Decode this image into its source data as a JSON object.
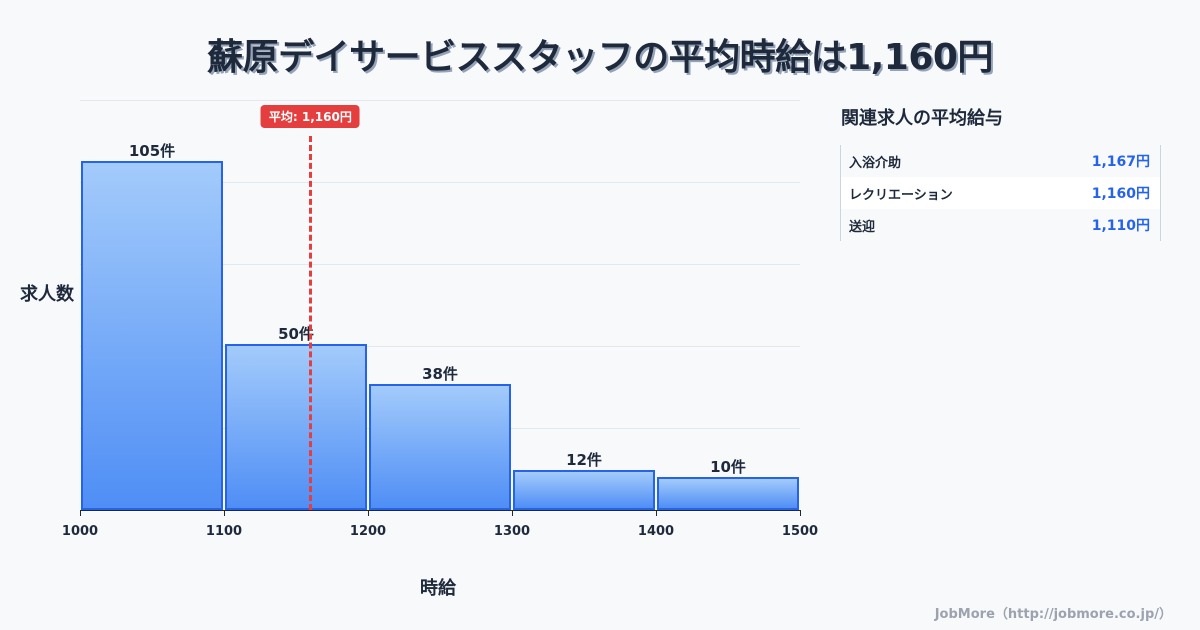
{
  "header": {
    "title": "蘇原デイサービススタッフの平均時給は1,160円"
  },
  "chart": {
    "ylabel": "求人数",
    "xlabel": "時給",
    "mean_label": "平均: 1,160円",
    "x_ticks": [
      "1000",
      "1100",
      "1200",
      "1300",
      "1400",
      "1500"
    ],
    "bar_labels": [
      "105件",
      "50件",
      "38件",
      "12件",
      "10件"
    ]
  },
  "chart_data": {
    "type": "bar",
    "title": "蘇原デイサービススタッフの平均時給は1,160円",
    "xlabel": "時給",
    "ylabel": "求人数",
    "categories": [
      "1000-1100",
      "1100-1200",
      "1200-1300",
      "1300-1400",
      "1400-1500"
    ],
    "bin_edges": [
      1000,
      1100,
      1200,
      1300,
      1400,
      1500
    ],
    "values": [
      105,
      50,
      38,
      12,
      10
    ],
    "value_labels": [
      "105件",
      "50件",
      "38件",
      "12件",
      "10件"
    ],
    "x_ticks": [
      1000,
      1100,
      1200,
      1300,
      1400,
      1500
    ],
    "xlim": [
      1000,
      1500
    ],
    "y_ticks_visible": false,
    "ylim_note": "No y-axis tick labels are shown; the top of the plot is inferred from bar heights (~3.32 px per count) to be roughly 123-125.",
    "grid": true,
    "grid_lines": 5,
    "annotations": [
      {
        "type": "vline",
        "x": 1160,
        "style": "dashed",
        "color": "#e53e3e",
        "label": "平均: 1,160円"
      }
    ],
    "legend": null
  },
  "panel": {
    "title": "関連求人の平均給与",
    "items": [
      {
        "name": "入浴介助",
        "value": "1,167円"
      },
      {
        "name": "レクリエーション",
        "value": "1,160円"
      },
      {
        "name": "送迎",
        "value": "1,110円"
      }
    ]
  },
  "footer": {
    "credit": "JobMore（http://jobmore.co.jp/）"
  },
  "colors": {
    "background": "#f8f9fb",
    "bar_border": "#2563eb",
    "bar_gradient_top": "#a3cbfb",
    "bar_gradient_bottom": "#4f8ef5",
    "mean_line": "#e53e3e",
    "panel_value": "#2563eb",
    "text": "#1e293b",
    "credit": "#9ca3af"
  }
}
